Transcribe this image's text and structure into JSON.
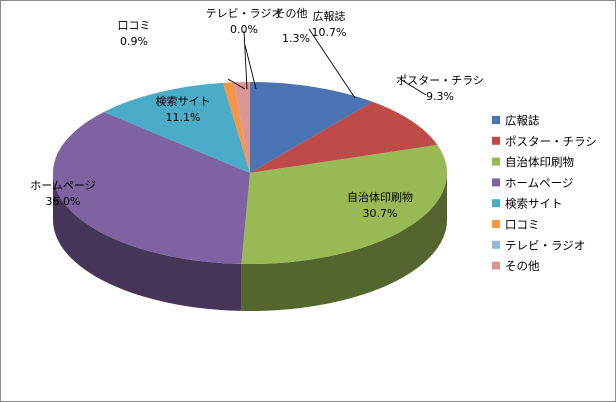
{
  "chart_data": {
    "type": "pie",
    "title": "",
    "categories": [
      "広報誌",
      "ポスター・チラシ",
      "自治体印刷物",
      "ホームページ",
      "検索サイト",
      "口コミ",
      "テレビ・ラジオ",
      "その他"
    ],
    "values": [
      10.7,
      9.3,
      30.7,
      36.0,
      11.1,
      0.9,
      0.0,
      1.3
    ],
    "value_labels": [
      "10.7%",
      "9.3%",
      "30.7%",
      "36.0%",
      "11.1%",
      "0.9%",
      "0.0%",
      "1.3%"
    ],
    "colors": [
      "#4A74B3",
      "#BE4B48",
      "#98B954",
      "#7E62A1",
      "#4AACC6",
      "#F79646",
      "#93B6DD",
      "#D99695"
    ],
    "legend_position": "right",
    "style": "3d"
  }
}
